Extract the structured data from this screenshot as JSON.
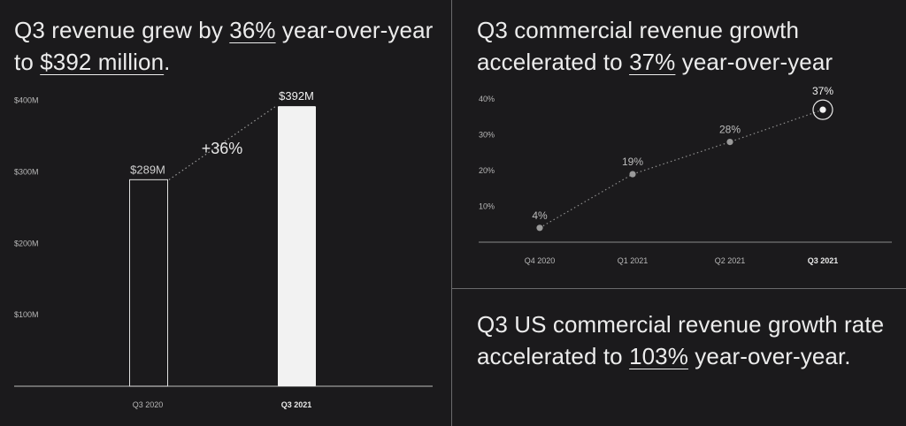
{
  "revenue_panel": {
    "headline": {
      "pre": "Q3 revenue grew by ",
      "highlight1": "36%",
      "mid": " year-over-year to ",
      "highlight2": "$392 million",
      "post": "."
    },
    "growth_label": "+36%"
  },
  "commercial_panel": {
    "headline": {
      "pre": "Q3 commercial revenue growth accelerated to ",
      "highlight": "37%",
      "post": " year-over-year"
    }
  },
  "us_commercial_panel": {
    "headline": {
      "pre": "Q3 US commercial revenue growth rate accelerated to ",
      "highlight": "103%",
      "post": " year-over-year."
    }
  },
  "colors": {
    "background": "#1b1a1c",
    "divider": "#6a6a6c",
    "bar_prior_outline": "#e0e0e0",
    "bar_current_fill": "#f2f2f2",
    "point": "#9a9a9a"
  },
  "chart_data": [
    {
      "type": "bar",
      "categories": [
        "Q3 2020",
        "Q3 2021"
      ],
      "values": [
        289,
        392
      ],
      "value_labels": [
        "$289M",
        "$392M"
      ],
      "y_ticks": [
        100,
        200,
        300,
        400
      ],
      "y_tick_labels": [
        "$100M",
        "$200M",
        "$300M",
        "$400M"
      ],
      "ylim": [
        0,
        420
      ],
      "unit": "$M",
      "grid": false
    },
    {
      "type": "line",
      "categories": [
        "Q4 2020",
        "Q1 2021",
        "Q2 2021",
        "Q3 2021"
      ],
      "values": [
        4,
        19,
        28,
        37
      ],
      "value_labels": [
        "4%",
        "19%",
        "28%",
        "37%"
      ],
      "y_ticks": [
        10,
        20,
        30,
        40
      ],
      "y_tick_labels": [
        "10%",
        "20%",
        "30%",
        "40%"
      ],
      "ylim": [
        0,
        40
      ],
      "unit": "%",
      "line_style": "dotted",
      "grid": false
    }
  ]
}
